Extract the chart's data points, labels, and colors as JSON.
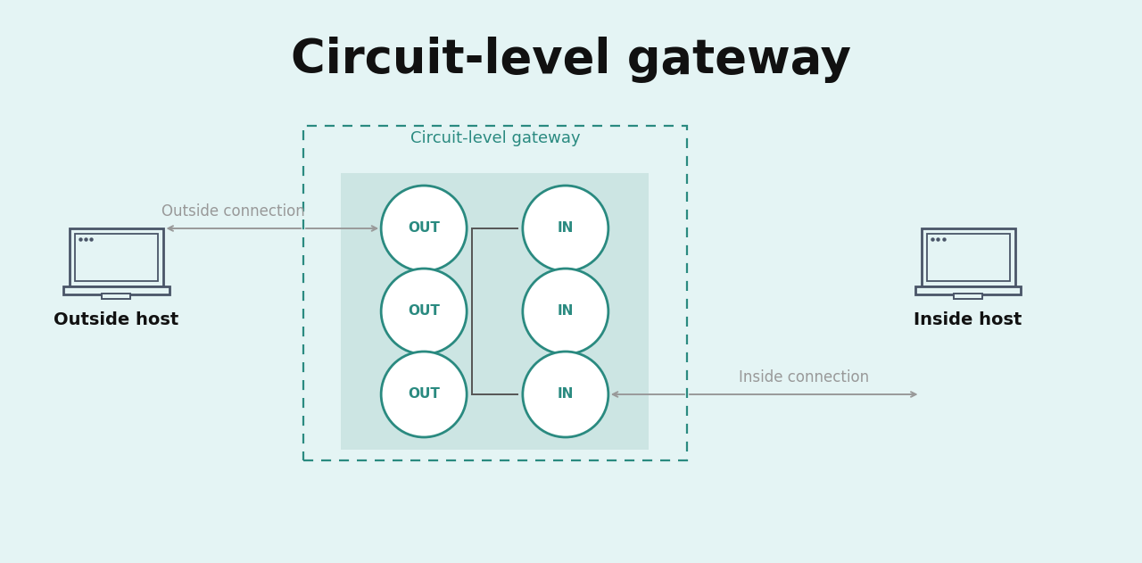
{
  "title": "Circuit-level gateway",
  "bg_color": "#e4f4f4",
  "teal_color": "#2a8a80",
  "circle_bg": "#ffffff",
  "circle_border": "#2a8a80",
  "inner_box_bg": "#cce5e3",
  "arrow_color": "#999999",
  "laptop_color": "#4a5568",
  "gateway_label": "Circuit-level gateway",
  "outside_connection_label": "Outside connection",
  "inside_connection_label": "Inside connection",
  "outside_host_label": "Outside host",
  "inside_host_label": "Inside host",
  "out_labels": [
    "OUT",
    "OUT",
    "OUT"
  ],
  "in_labels": [
    "IN",
    "IN",
    "IN"
  ],
  "title_fontsize": 38,
  "label_fontsize": 12,
  "host_fontsize": 14,
  "circle_fontsize": 11
}
